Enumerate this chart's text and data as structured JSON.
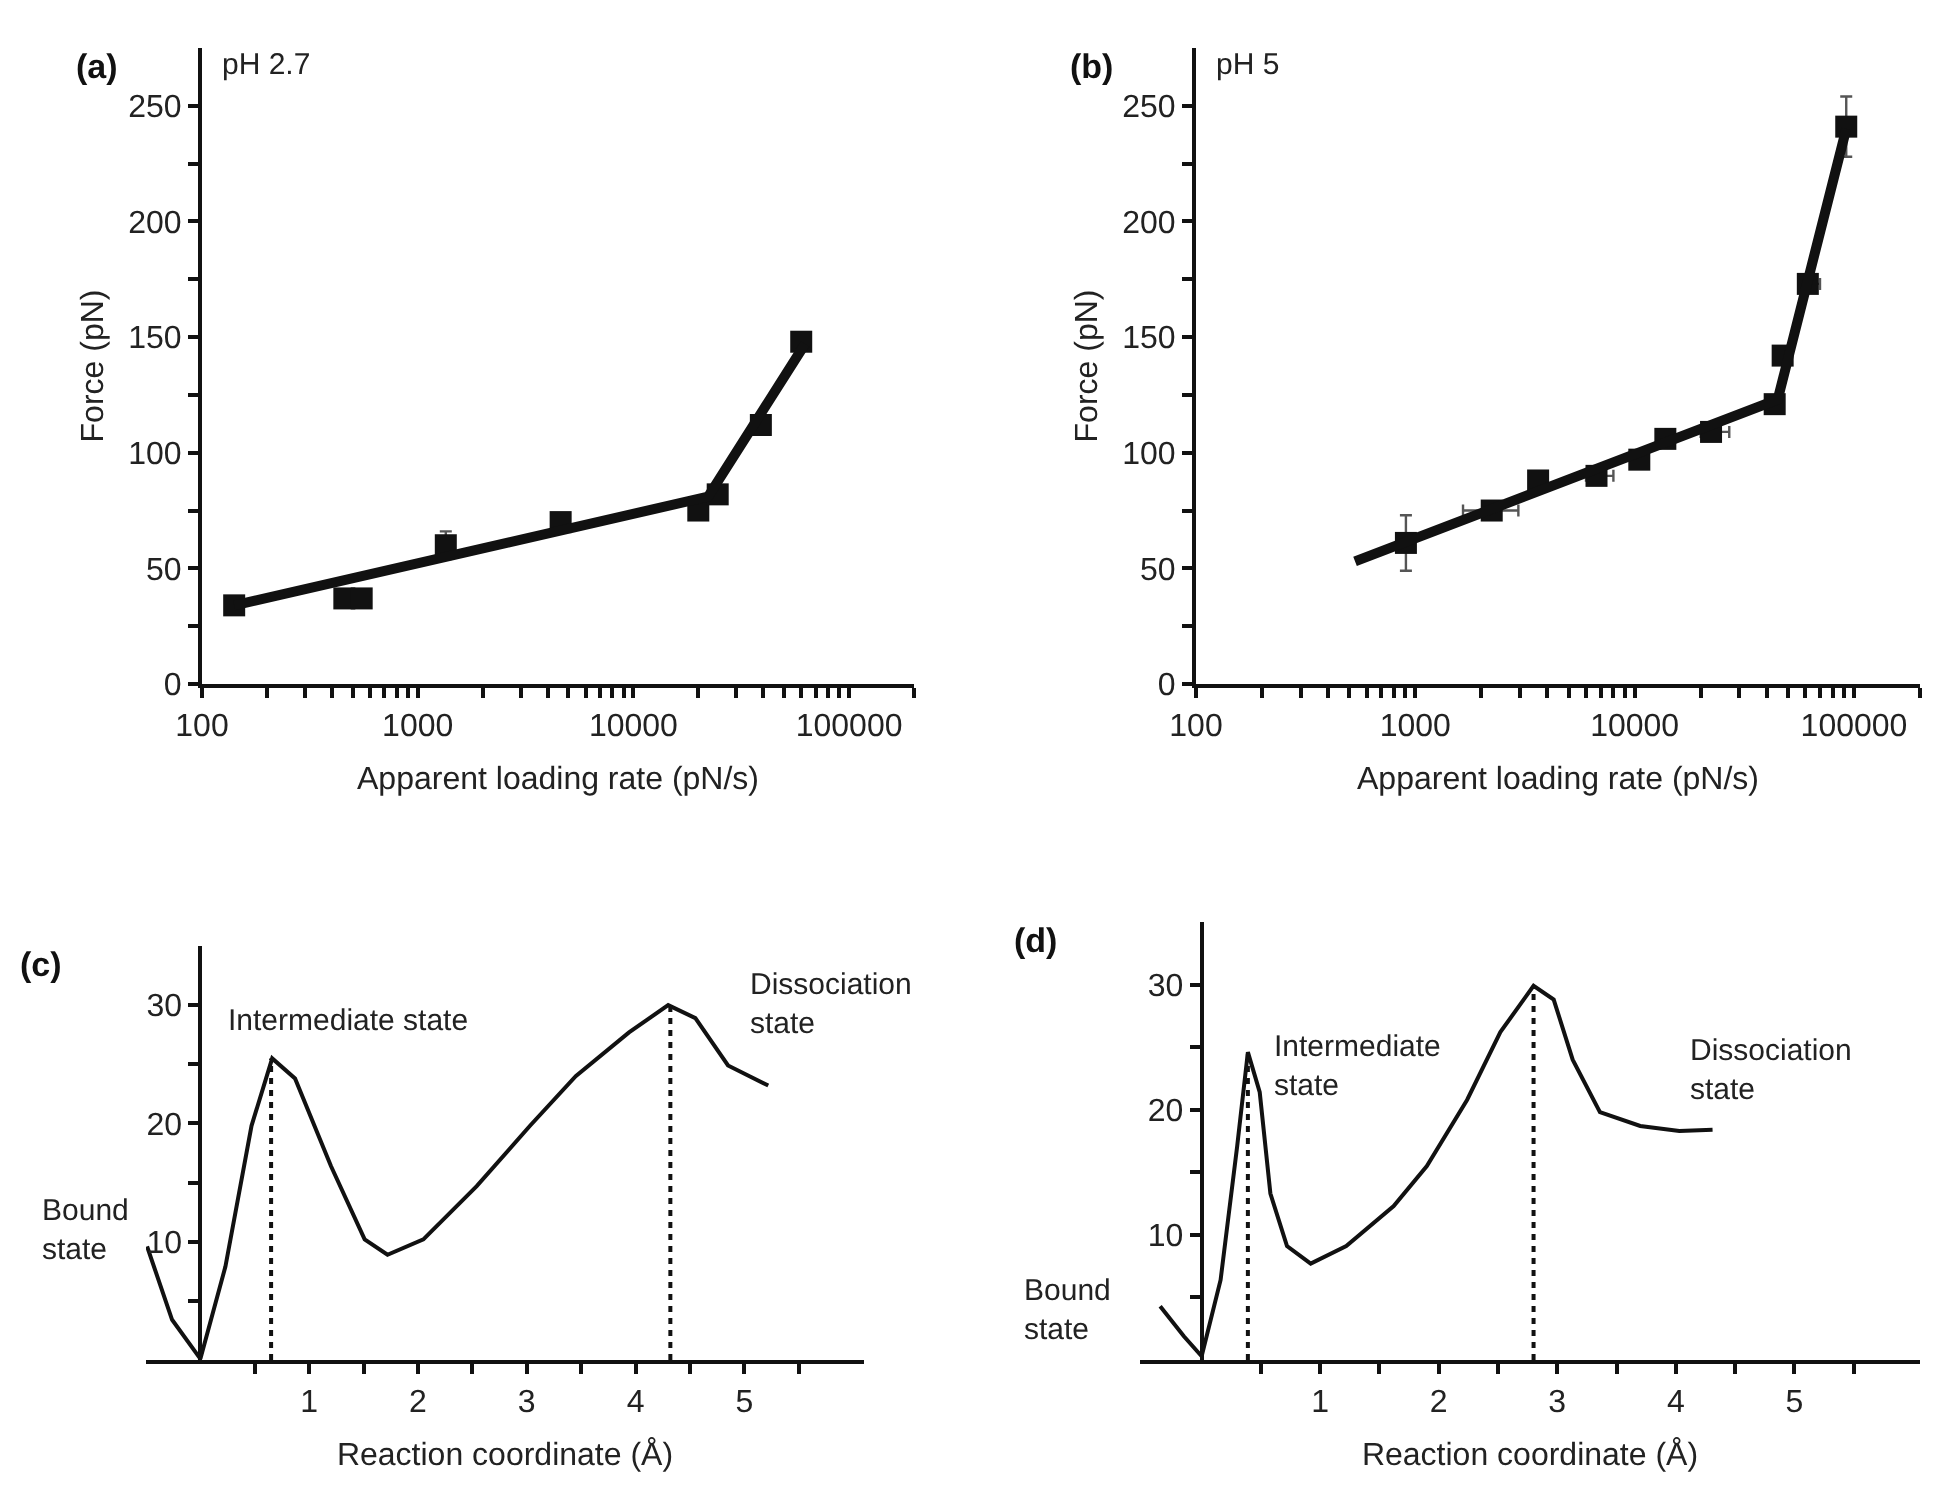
{
  "chart_data": [
    {
      "type": "scatter",
      "title": "(a)",
      "subtitle": "pH 2.7",
      "xlabel": "Apparent loading rate (pN/s)",
      "ylabel": "Force (pN)",
      "log": "x",
      "xlim": [
        100,
        200000
      ],
      "xticks": [
        100,
        {
          "value": 200,
          "label": null
        },
        {
          "value": 300,
          "label": null
        },
        {
          "value": 400,
          "label": null
        },
        {
          "value": 500,
          "label": null
        },
        {
          "value": 600,
          "label": null
        },
        {
          "value": 700,
          "label": null
        },
        {
          "value": 800,
          "label": null
        },
        {
          "value": 900,
          "label": null
        },
        1000,
        {
          "value": 2000,
          "label": null
        },
        {
          "value": 3000,
          "label": null
        },
        {
          "value": 4000,
          "label": null
        },
        {
          "value": 5000,
          "label": null
        },
        {
          "value": 6000,
          "label": null
        },
        {
          "value": 7000,
          "label": null
        },
        {
          "value": 8000,
          "label": null
        },
        {
          "value": 9000,
          "label": null
        },
        10000,
        {
          "value": 20000,
          "label": null
        },
        {
          "value": 30000,
          "label": null
        },
        {
          "value": 40000,
          "label": null
        },
        {
          "value": 50000,
          "label": null
        },
        {
          "value": 60000,
          "label": null
        },
        {
          "value": 70000,
          "label": null
        },
        {
          "value": 80000,
          "label": null
        },
        {
          "value": 90000,
          "label": null
        },
        100000,
        {
          "value": 200000,
          "label": null
        }
      ],
      "ylim": [
        0,
        275
      ],
      "yticks": [
        0,
        {
          "value": 25,
          "label": null
        },
        50,
        {
          "value": 75,
          "label": null
        },
        100,
        {
          "value": 125,
          "label": null
        },
        150,
        {
          "value": 175,
          "label": null
        },
        200,
        {
          "value": 225,
          "label": null
        },
        250
      ],
      "series": [
        {
          "type": "scatter",
          "marker": "square",
          "color": "#111111",
          "x": [
            141,
            457,
            550,
            1350,
            4600,
            20000,
            24600,
            39000,
            60000
          ],
          "values": [
            34,
            37,
            37,
            60,
            70,
            75,
            82,
            112,
            148
          ],
          "errors": [
            null,
            null,
            null,
            6,
            null,
            null,
            null,
            null,
            null
          ]
        },
        {
          "type": "line",
          "color": "#111111",
          "x": [
            141,
            22200,
            62500
          ],
          "values": [
            34,
            81,
            147
          ]
        }
      ]
    },
    {
      "type": "scatter",
      "title": "(b)",
      "subtitle": "pH 5",
      "xlabel": "Apparent loading rate (pN/s)",
      "ylabel": "Force (pN)",
      "log": "x",
      "xlim": [
        100,
        200000
      ],
      "xticks": [
        100,
        {
          "value": 200,
          "label": null
        },
        {
          "value": 300,
          "label": null
        },
        {
          "value": 400,
          "label": null
        },
        {
          "value": 500,
          "label": null
        },
        {
          "value": 600,
          "label": null
        },
        {
          "value": 700,
          "label": null
        },
        {
          "value": 800,
          "label": null
        },
        {
          "value": 900,
          "label": null
        },
        1000,
        {
          "value": 2000,
          "label": null
        },
        {
          "value": 3000,
          "label": null
        },
        {
          "value": 4000,
          "label": null
        },
        {
          "value": 5000,
          "label": null
        },
        {
          "value": 6000,
          "label": null
        },
        {
          "value": 7000,
          "label": null
        },
        {
          "value": 8000,
          "label": null
        },
        {
          "value": 9000,
          "label": null
        },
        10000,
        {
          "value": 20000,
          "label": null
        },
        {
          "value": 30000,
          "label": null
        },
        {
          "value": 40000,
          "label": null
        },
        {
          "value": 50000,
          "label": null
        },
        {
          "value": 60000,
          "label": null
        },
        {
          "value": 70000,
          "label": null
        },
        {
          "value": 80000,
          "label": null
        },
        {
          "value": 90000,
          "label": null
        },
        100000,
        {
          "value": 200000,
          "label": null
        }
      ],
      "ylim": [
        0,
        275
      ],
      "yticks": [
        0,
        {
          "value": 25,
          "label": null
        },
        50,
        {
          "value": 75,
          "label": null
        },
        100,
        {
          "value": 125,
          "label": null
        },
        150,
        {
          "value": 175,
          "label": null
        },
        200,
        {
          "value": 225,
          "label": null
        },
        250
      ],
      "series": [
        {
          "type": "scatter",
          "marker": "square",
          "color": "#111111",
          "x": [
            906,
            2230,
            3630,
            6700,
            10500,
            13800,
            22300,
            43500,
            47300,
            61600,
            92200
          ],
          "values": [
            61,
            75,
            88,
            90,
            97,
            106,
            109,
            121,
            142,
            173,
            241
          ],
          "errors": [
            12,
            null,
            3,
            3,
            3,
            3,
            3,
            3,
            null,
            null,
            13
          ],
          "xerrors": [
            null,
            [
              1650,
              2950
            ],
            null,
            [
              6000,
              8000
            ],
            null,
            null,
            [
              20000,
              27000
            ],
            null,
            null,
            [
              58000,
              70000
            ],
            null
          ]
        },
        {
          "type": "line",
          "color": "#111111",
          "x": [
            531,
            44900,
            92200
          ],
          "values": [
            53,
            123,
            240
          ]
        }
      ]
    },
    {
      "type": "line",
      "title": "(c)",
      "xlabel": "Reaction coordinate (Å)",
      "xlim": [
        -0.5,
        6.1
      ],
      "xticks": [
        {
          "value": 0.5,
          "label": null
        },
        1,
        {
          "value": 1.5,
          "label": null
        },
        2,
        {
          "value": 2.5,
          "label": null
        },
        3,
        {
          "value": 3.5,
          "label": null
        },
        4,
        {
          "value": 4.5,
          "label": null
        },
        5,
        {
          "value": 5.5,
          "label": null
        }
      ],
      "ylim": [
        0,
        35
      ],
      "yticks": [
        {
          "value": 5,
          "label": null
        },
        10,
        {
          "value": 15,
          "label": null
        },
        20,
        {
          "value": 25,
          "label": null
        },
        30
      ],
      "series": [
        {
          "type": "line",
          "color": "#111111",
          "x": [
            -0.49,
            -0.26,
            0,
            0.23,
            0.47,
            0.66,
            0.87,
            1.2,
            1.51,
            1.72,
            2.05,
            2.54,
            3.03,
            3.45,
            3.94,
            4.3,
            4.55,
            4.85,
            5.22
          ],
          "values": [
            9.6,
            3.4,
            0.1,
            7.9,
            19.8,
            25.5,
            23.8,
            16.4,
            10.2,
            8.9,
            10.2,
            14.7,
            19.8,
            24,
            27.7,
            30,
            28.9,
            24.9,
            23.2
          ]
        },
        {
          "type": "line",
          "color": "#111111",
          "line_style": "dotted",
          "x": [
            0.65,
            0.65
          ],
          "values": [
            0,
            25.5
          ]
        },
        {
          "type": "line",
          "color": "#111111",
          "line_style": "dotted",
          "x": [
            4.32,
            4.32
          ],
          "values": [
            0,
            30
          ]
        }
      ],
      "annotations": [
        "Bound\nstate",
        "Intermediate state",
        "Dissociation\nstate"
      ]
    },
    {
      "type": "line",
      "title": "(d)",
      "xlabel": "Reaction coordinate (Å)",
      "xlim": [
        -0.52,
        6.06
      ],
      "xticks": [
        {
          "value": 0.5,
          "label": null
        },
        1,
        {
          "value": 1.5,
          "label": null
        },
        2,
        {
          "value": 2.5,
          "label": null
        },
        3,
        {
          "value": 3.5,
          "label": null
        },
        4,
        {
          "value": 4.5,
          "label": null
        },
        5,
        {
          "value": 5.5,
          "label": null
        }
      ],
      "ylim": [
        0,
        35
      ],
      "yticks": [
        {
          "value": 5,
          "label": null
        },
        10,
        {
          "value": 15,
          "label": null
        },
        20,
        {
          "value": 25,
          "label": null
        },
        30
      ],
      "series": [
        {
          "type": "line",
          "color": "#111111",
          "x": [
            -0.35,
            -0.15,
            0,
            0.16,
            0.3,
            0.39,
            0.49,
            0.58,
            0.72,
            0.92,
            1.22,
            1.62,
            1.9,
            2.24,
            2.52,
            2.8,
            2.97,
            3.13,
            3.36,
            3.7,
            4.03,
            4.31
          ],
          "values": [
            4.3,
            1.9,
            0.3,
            6.4,
            17.1,
            24.6,
            21.4,
            13.3,
            9.1,
            7.7,
            9.1,
            12.3,
            15.5,
            20.8,
            26.2,
            29.9,
            28.8,
            24,
            19.8,
            18.7,
            18.3,
            18.4
          ]
        },
        {
          "type": "line",
          "color": "#111111",
          "line_style": "dotted",
          "x": [
            0.39,
            0.39
          ],
          "values": [
            0,
            24.6
          ]
        },
        {
          "type": "line",
          "color": "#111111",
          "line_style": "dotted",
          "x": [
            2.8,
            2.8
          ],
          "values": [
            0,
            29.9
          ]
        }
      ],
      "annotations": [
        "Bound\nstate",
        "Intermediate\nstate",
        "Dissociation\nstate"
      ]
    }
  ]
}
